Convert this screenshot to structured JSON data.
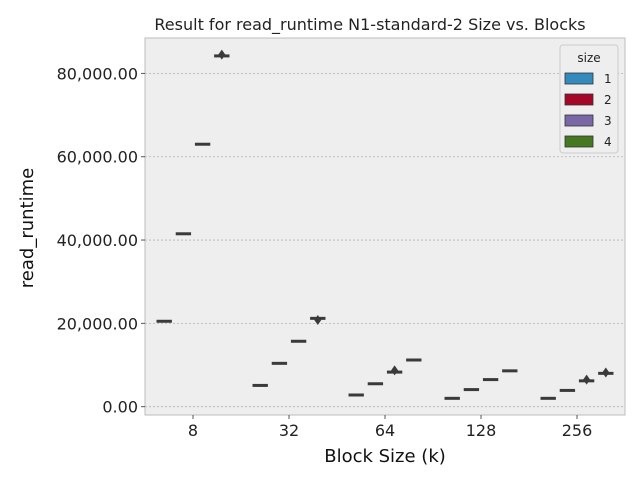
{
  "chart_data": {
    "type": "box",
    "title": "Result for read_runtime N1-standard-2 Size vs. Blocks",
    "xlabel": "Block Size (k)",
    "ylabel": "read_runtime",
    "categories": [
      "8",
      "32",
      "64",
      "128",
      "256"
    ],
    "ylim": [
      -2000,
      88500
    ],
    "yticks": [
      0,
      20000,
      40000,
      60000,
      80000
    ],
    "ytick_labels": [
      "0.00",
      "20,000.00",
      "40,000.00",
      "60,000.00",
      "80,000.00"
    ],
    "grid": true,
    "legend": {
      "title": "size",
      "placement": "top-right",
      "entries": [
        "1",
        "2",
        "3",
        "4"
      ]
    },
    "series": [
      {
        "name": "1",
        "color": "#348ABD",
        "values": [
          20500,
          5100,
          2800,
          2000,
          2000
        ],
        "outliers": [
          [],
          [],
          [],
          [],
          []
        ]
      },
      {
        "name": "2",
        "color": "#A60628",
        "values": [
          41500,
          10400,
          5500,
          4100,
          3900
        ],
        "outliers": [
          [],
          [],
          [],
          [],
          []
        ]
      },
      {
        "name": "3",
        "color": "#7A68A6",
        "values": [
          63000,
          15700,
          8300,
          6500,
          6200
        ],
        "outliers": [
          [],
          [],
          [
            8700
          ],
          [],
          [
            6500
          ]
        ]
      },
      {
        "name": "4",
        "color": "#467821",
        "values": [
          84200,
          21200,
          11200,
          8600,
          8000
        ],
        "outliers": [
          [
            84500
          ],
          [
            20800
          ],
          [],
          [],
          [
            8200
          ]
        ]
      }
    ]
  }
}
